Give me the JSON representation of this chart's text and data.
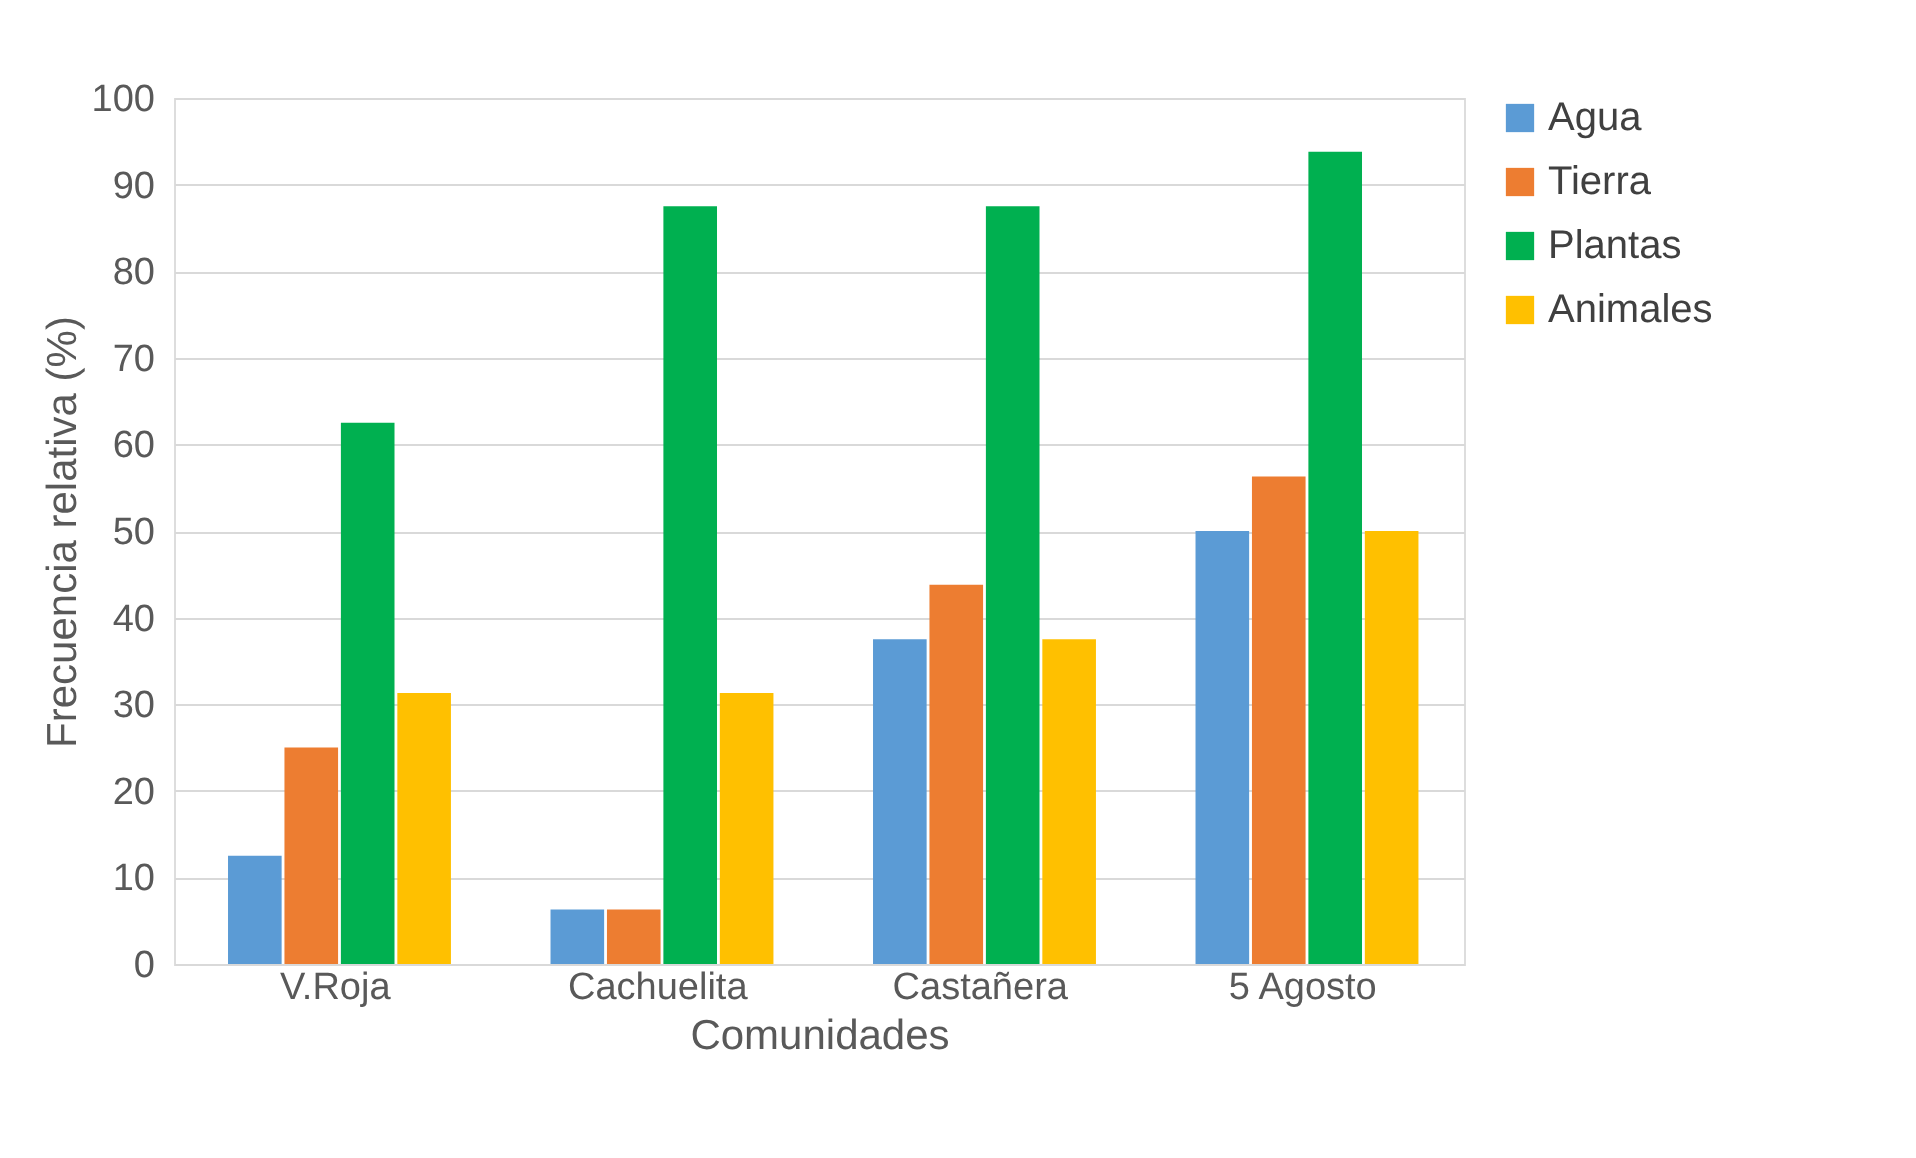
{
  "chart_data": {
    "type": "bar",
    "xlabel": "Comunidades",
    "ylabel": "Frecuencia relativa (%)",
    "categories": [
      "V.Roja",
      "Cachuelita",
      "Castañera",
      "5 Agosto"
    ],
    "series": [
      {
        "name": "Agua",
        "color": "#5b9bd5",
        "values": [
          12.5,
          6.3,
          37.5,
          50
        ]
      },
      {
        "name": "Tierra",
        "color": "#ed7d31",
        "values": [
          25,
          6.3,
          43.8,
          56.3
        ]
      },
      {
        "name": "Plantas",
        "color": "#00b050",
        "values": [
          62.5,
          87.5,
          87.5,
          93.8
        ]
      },
      {
        "name": "Animales",
        "color": "#ffc000",
        "values": [
          31.3,
          31.3,
          37.5,
          50
        ]
      }
    ],
    "ylim": [
      0,
      100
    ],
    "yticks": [
      0,
      10,
      20,
      30,
      40,
      50,
      60,
      70,
      80,
      90,
      100
    ],
    "grid": "y",
    "legend": "right"
  }
}
